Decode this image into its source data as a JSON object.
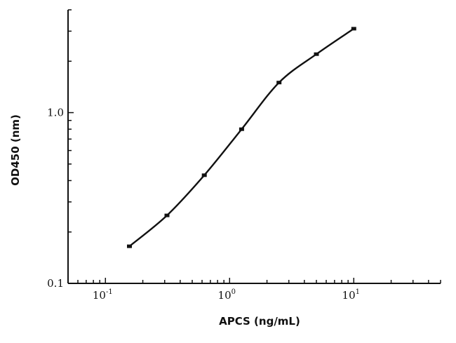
{
  "chart_data": {
    "type": "line",
    "xlabel": "APCS (ng/mL)",
    "ylabel": "OD450 (nm)",
    "x_scale": "log",
    "y_scale": "log",
    "xlim": [
      0.05,
      50
    ],
    "ylim": [
      0.1,
      4
    ],
    "x_ticks": [
      {
        "value": 0.1,
        "base": "10",
        "exp": "-1"
      },
      {
        "value": 1,
        "base": "10",
        "exp": "0"
      },
      {
        "value": 10,
        "base": "10",
        "exp": "1"
      }
    ],
    "y_ticks": [
      {
        "value": 0.1,
        "label": "0.1"
      },
      {
        "value": 1,
        "label": "1.0"
      }
    ],
    "grid": false,
    "series": [
      {
        "x": [
          0.156,
          0.313,
          0.625,
          1.25,
          2.5,
          5,
          10
        ],
        "y": [
          0.165,
          0.25,
          0.43,
          0.8,
          1.5,
          2.2,
          3.1
        ]
      }
    ]
  }
}
